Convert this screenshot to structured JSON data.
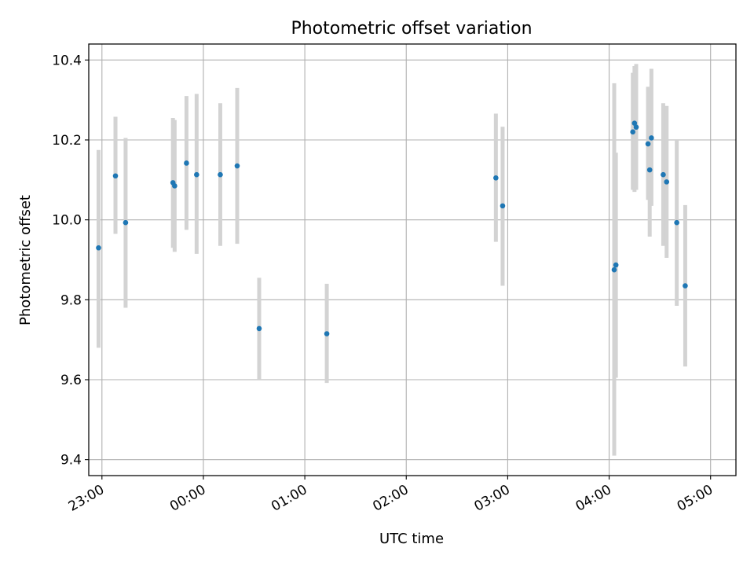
{
  "chart_data": {
    "type": "scatter",
    "title": "Photometric offset variation",
    "xlabel": "UTC time",
    "ylabel": "Photometric offset",
    "grid": true,
    "xlim_minutes": [
      -67.8,
      315.0
    ],
    "ylim": [
      9.36,
      10.44
    ],
    "x_ticks": [
      {
        "minute": -60,
        "label": "23:00"
      },
      {
        "minute": 0,
        "label": "00:00"
      },
      {
        "minute": 60,
        "label": "01:00"
      },
      {
        "minute": 120,
        "label": "02:00"
      },
      {
        "minute": 180,
        "label": "03:00"
      },
      {
        "minute": 240,
        "label": "04:00"
      },
      {
        "minute": 300,
        "label": "05:00"
      }
    ],
    "y_ticks": [
      {
        "value": 9.4,
        "label": "9.4"
      },
      {
        "value": 9.6,
        "label": "9.6"
      },
      {
        "value": 9.8,
        "label": "9.8"
      },
      {
        "value": 10.0,
        "label": "10.0"
      },
      {
        "value": 10.2,
        "label": "10.2"
      },
      {
        "value": 10.4,
        "label": "10.4"
      }
    ],
    "points": [
      {
        "time": "22:58",
        "value": 9.93,
        "err_low": 9.68,
        "err_high": 10.175
      },
      {
        "time": "23:08",
        "value": 10.11,
        "err_low": 9.965,
        "err_high": 10.258
      },
      {
        "time": "23:14",
        "value": 9.993,
        "err_low": 9.78,
        "err_high": 10.205
      },
      {
        "time": "23:42",
        "value": 10.093,
        "err_low": 9.93,
        "err_high": 10.255
      },
      {
        "time": "23:43",
        "value": 10.085,
        "err_low": 9.92,
        "err_high": 10.25
      },
      {
        "time": "23:50",
        "value": 10.142,
        "err_low": 9.975,
        "err_high": 10.31
      },
      {
        "time": "23:56",
        "value": 10.113,
        "err_low": 9.915,
        "err_high": 10.315
      },
      {
        "time": "00:10",
        "value": 10.113,
        "err_low": 9.935,
        "err_high": 10.292
      },
      {
        "time": "00:20",
        "value": 10.135,
        "err_low": 9.94,
        "err_high": 10.33
      },
      {
        "time": "00:33",
        "value": 9.728,
        "err_low": 9.6,
        "err_high": 9.855
      },
      {
        "time": "01:13",
        "value": 9.715,
        "err_low": 9.592,
        "err_high": 9.84
      },
      {
        "time": "02:53",
        "value": 10.105,
        "err_low": 9.945,
        "err_high": 10.266
      },
      {
        "time": "02:57",
        "value": 10.035,
        "err_low": 9.835,
        "err_high": 10.233
      },
      {
        "time": "04:03",
        "value": 9.875,
        "err_low": 9.41,
        "err_high": 10.342
      },
      {
        "time": "04:04",
        "value": 9.887,
        "err_low": 9.605,
        "err_high": 10.168
      },
      {
        "time": "04:14",
        "value": 10.22,
        "err_low": 10.075,
        "err_high": 10.368
      },
      {
        "time": "04:15",
        "value": 10.242,
        "err_low": 10.07,
        "err_high": 10.385
      },
      {
        "time": "04:16",
        "value": 10.232,
        "err_low": 10.075,
        "err_high": 10.39
      },
      {
        "time": "04:23",
        "value": 10.19,
        "err_low": 10.05,
        "err_high": 10.333
      },
      {
        "time": "04:24",
        "value": 10.125,
        "err_low": 9.958,
        "err_high": 10.29
      },
      {
        "time": "04:25",
        "value": 10.205,
        "err_low": 10.035,
        "err_high": 10.378
      },
      {
        "time": "04:32",
        "value": 10.113,
        "err_low": 9.935,
        "err_high": 10.292
      },
      {
        "time": "04:34",
        "value": 10.095,
        "err_low": 9.905,
        "err_high": 10.285
      },
      {
        "time": "04:40",
        "value": 9.993,
        "err_low": 9.785,
        "err_high": 10.2
      },
      {
        "time": "04:45",
        "value": 9.835,
        "err_low": 9.633,
        "err_high": 10.037
      }
    ],
    "colors": {
      "marker": "#1f77b4",
      "errorbar": "#d3d3d3",
      "grid": "#b0b0b0",
      "axis": "#000000"
    }
  }
}
